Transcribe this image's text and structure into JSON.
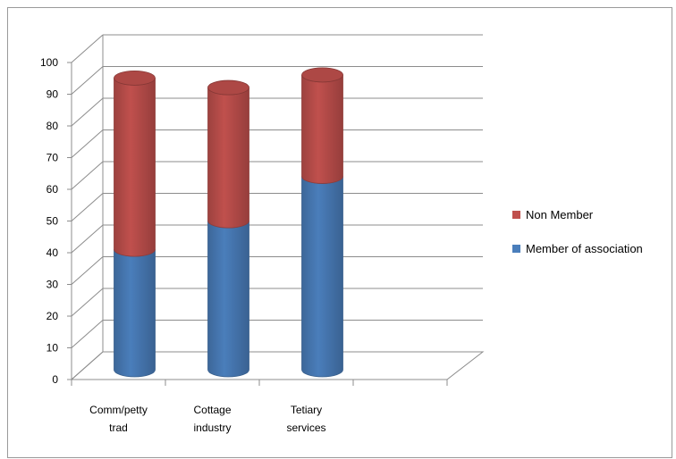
{
  "chart_data": {
    "type": "bar",
    "subtype": "stacked-3d-cylinder",
    "categories": [
      "Comm/petty trad",
      "Cottage industry",
      "Tetiary services"
    ],
    "category_lines": [
      [
        "Comm/petty",
        "trad"
      ],
      [
        "Cottage",
        "industry"
      ],
      [
        "Tetiary",
        "services"
      ]
    ],
    "series": [
      {
        "name": "Member of association",
        "values": [
          38,
          47,
          61
        ],
        "color": "#4a7ebb"
      },
      {
        "name": "Non Member",
        "values": [
          54,
          42,
          32
        ],
        "color": "#c0504d"
      }
    ],
    "ylim": [
      0,
      100
    ],
    "yticks": [
      "0",
      "10",
      "20",
      "30",
      "40",
      "50",
      "60",
      "70",
      "80",
      "90",
      "100"
    ],
    "grid": true,
    "legend": "right",
    "title": "",
    "xlabel": "",
    "ylabel": ""
  }
}
